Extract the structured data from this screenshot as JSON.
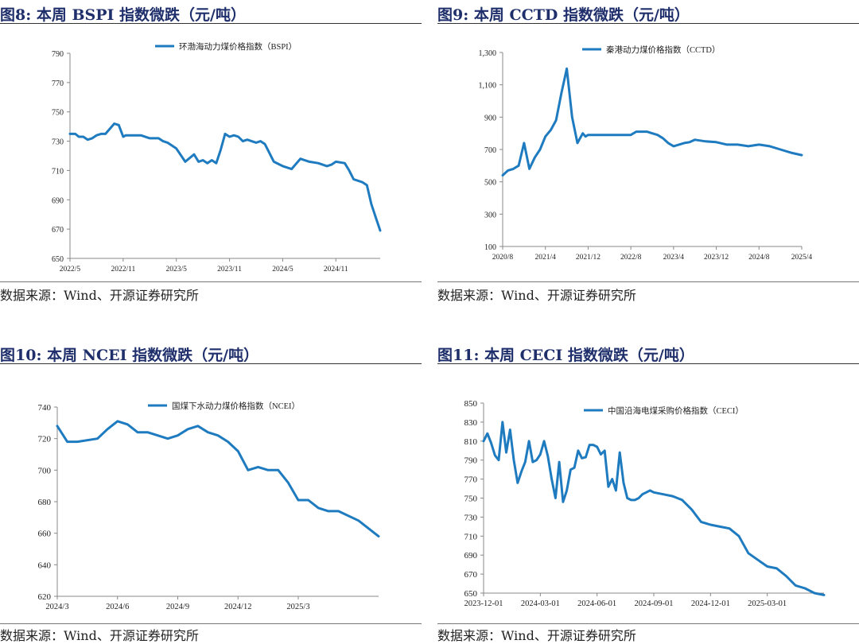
{
  "panels": [
    {
      "title": "图8:  本周 BSPI 指数微跌（元/吨）",
      "source": "数据来源：Wind、开源证券研究所",
      "chart_data": {
        "type": "line",
        "legend": "环渤海动力煤价格指数（BSPI）",
        "legend_position": "top-center",
        "color": "#1f7bbf",
        "ylim": [
          650,
          790
        ],
        "yticks": [
          650,
          670,
          690,
          710,
          730,
          750,
          770,
          790
        ],
        "ytick_labels": [
          "650",
          "670",
          "690",
          "710",
          "730",
          "750",
          "770",
          "790"
        ],
        "xlim": [
          0,
          35
        ],
        "xticks": [
          0,
          6,
          12,
          18,
          24,
          30
        ],
        "xtick_labels": [
          "2022/5",
          "2022/11",
          "2023/5",
          "2023/11",
          "2024/5",
          "2024/11"
        ],
        "x": [
          0,
          0.6,
          1,
          1.5,
          2,
          2.5,
          3,
          3.5,
          4,
          5,
          5.5,
          6,
          6.3,
          6.5,
          7,
          8,
          9,
          10,
          10.5,
          11,
          12,
          13,
          14,
          14.5,
          15,
          15.5,
          16,
          16.5,
          17,
          17.5,
          18,
          18.5,
          19,
          19.5,
          20,
          20.5,
          21,
          21.5,
          22,
          23,
          24,
          25,
          26,
          27,
          28,
          29,
          29.5,
          30,
          31,
          31.5,
          32,
          33,
          33.5,
          34,
          34.5,
          35
        ],
        "values": [
          735,
          735,
          733,
          733,
          731,
          732,
          734,
          735,
          735,
          742,
          741,
          733,
          734,
          734,
          734,
          734,
          732,
          732,
          730,
          729,
          725,
          716,
          721,
          716,
          717,
          715,
          717,
          715,
          724,
          735,
          733,
          734,
          733,
          730,
          731,
          730,
          729,
          730,
          728,
          716,
          713,
          711,
          718,
          716,
          715,
          713,
          714,
          716,
          715,
          710,
          704,
          702,
          700,
          687,
          678,
          669
        ],
        "grid": false
      }
    },
    {
      "title": "图9:  本周 CCTD 指数微跌（元/吨）",
      "source": "数据来源：Wind、开源证券研究所",
      "chart_data": {
        "type": "line",
        "legend": "秦港动力煤价格指数（CCTD）",
        "legend_position": "top-center",
        "color": "#1f7bbf",
        "ylim": [
          100,
          1300
        ],
        "yticks": [
          100,
          300,
          500,
          700,
          900,
          1100,
          1300
        ],
        "ytick_labels": [
          "100",
          "300",
          "500",
          "700",
          "900",
          "1,100",
          "1,300"
        ],
        "xlim": [
          0,
          56
        ],
        "xticks": [
          0,
          8,
          16,
          24,
          32,
          40,
          48,
          56
        ],
        "xtick_labels": [
          "2020/8",
          "2021/4",
          "2021/12",
          "2022/8",
          "2023/4",
          "2023/12",
          "2024/8",
          "2025/4"
        ],
        "x": [
          0,
          1,
          2,
          3,
          4,
          5,
          6,
          7,
          8,
          9,
          10,
          11,
          12,
          13,
          14,
          15,
          15.5,
          16,
          17,
          18,
          20,
          22,
          24,
          25,
          26,
          27,
          28,
          29,
          30,
          31,
          32,
          33,
          34,
          35,
          36,
          38,
          40,
          42,
          44,
          46,
          48,
          50,
          52,
          54,
          56
        ],
        "values": [
          540,
          570,
          580,
          600,
          740,
          580,
          650,
          700,
          780,
          820,
          880,
          1050,
          1200,
          900,
          740,
          800,
          780,
          790,
          790,
          790,
          790,
          790,
          790,
          810,
          810,
          810,
          800,
          790,
          770,
          740,
          720,
          730,
          740,
          745,
          760,
          750,
          745,
          730,
          730,
          720,
          730,
          720,
          700,
          680,
          665
        ],
        "grid": false
      }
    },
    {
      "title": "图10:  本周 NCEI 指数微跌（元/吨）",
      "source": "数据来源：Wind、开源证券研究所",
      "chart_data": {
        "type": "line",
        "legend": "国煤下水动力煤价格指数（NCEI）",
        "legend_position": "top-center",
        "color": "#1f7bbf",
        "ylim": [
          620,
          740
        ],
        "yticks": [
          620,
          640,
          660,
          680,
          700,
          720,
          740
        ],
        "ytick_labels": [
          "620",
          "640",
          "660",
          "680",
          "700",
          "720",
          "740"
        ],
        "xlim": [
          0,
          16
        ],
        "xticks": [
          0,
          3,
          6,
          9,
          12
        ],
        "xtick_labels": [
          "2024/3",
          "2024/6",
          "2024/9",
          "2024/12",
          "2025/3"
        ],
        "x": [
          0,
          0.5,
          1,
          2,
          2.5,
          3,
          3.5,
          4,
          4.5,
          5,
          5.5,
          6,
          6.5,
          7,
          7.5,
          8,
          8.5,
          9,
          9.5,
          10,
          10.5,
          11,
          11.5,
          12,
          12.5,
          13,
          13.5,
          14,
          15,
          16
        ],
        "values": [
          728,
          718,
          718,
          720,
          726,
          731,
          729,
          724,
          724,
          722,
          720,
          722,
          726,
          728,
          724,
          722,
          718,
          712,
          700,
          702,
          700,
          700,
          692,
          681,
          681,
          676,
          674,
          674,
          668,
          658
        ],
        "grid": false
      }
    },
    {
      "title": "图11:  本周 CECI 指数微跌（元/吨）",
      "source": "数据来源：Wind、开源证券研究所",
      "chart_data": {
        "type": "line",
        "legend": "中国沿海电煤采购价格指数（CECI）",
        "legend_position": "top-center",
        "color": "#1f7bbf",
        "ylim": [
          650,
          850
        ],
        "yticks": [
          650,
          670,
          690,
          710,
          730,
          750,
          770,
          790,
          810,
          830,
          850
        ],
        "ytick_labels": [
          "650",
          "670",
          "690",
          "710",
          "730",
          "750",
          "770",
          "790",
          "810",
          "830",
          "850"
        ],
        "xlim": [
          0,
          18
        ],
        "xticks": [
          0,
          3,
          6,
          9,
          12,
          15
        ],
        "xtick_labels": [
          "2023-12-01",
          "2024-03-01",
          "2024-06-01",
          "2024-09-01",
          "2024-12-01",
          "2025-03-01"
        ],
        "x": [
          0,
          0.2,
          0.4,
          0.6,
          0.8,
          1,
          1.2,
          1.4,
          1.6,
          1.8,
          2,
          2.2,
          2.4,
          2.6,
          2.8,
          3,
          3.2,
          3.4,
          3.6,
          3.8,
          4,
          4.2,
          4.4,
          4.6,
          4.8,
          5,
          5.2,
          5.4,
          5.6,
          5.8,
          6,
          6.2,
          6.4,
          6.6,
          6.8,
          7,
          7.2,
          7.4,
          7.6,
          7.8,
          8,
          8.2,
          8.4,
          8.6,
          8.8,
          9,
          9.5,
          10,
          10.5,
          11,
          11.5,
          12,
          12.5,
          13,
          13.5,
          14,
          14.5,
          15,
          15.5,
          16,
          16.5,
          17,
          17.5,
          18
        ],
        "values": [
          810,
          818,
          808,
          795,
          790,
          830,
          798,
          822,
          790,
          766,
          778,
          788,
          810,
          788,
          790,
          796,
          810,
          794,
          770,
          750,
          788,
          746,
          758,
          780,
          782,
          800,
          792,
          793,
          806,
          806,
          804,
          796,
          800,
          762,
          770,
          758,
          798,
          766,
          750,
          748,
          748,
          750,
          754,
          756,
          758,
          756,
          754,
          752,
          748,
          738,
          725,
          722,
          720,
          718,
          710,
          692,
          685,
          678,
          676,
          668,
          658,
          655,
          650,
          648
        ],
        "grid": false
      }
    }
  ]
}
